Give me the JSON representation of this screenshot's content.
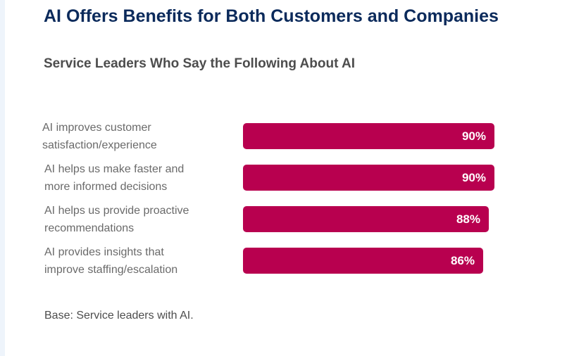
{
  "title": "AI Offers Benefits for Both Customers and Companies",
  "subtitle": "Service Leaders Who Say the Following About AI",
  "footnote": "Base: Service leaders with AI.",
  "colors": {
    "bar": "#b8004f",
    "title": "#0b2a5b",
    "label": "#6a6a6a"
  },
  "chart_data": {
    "type": "bar",
    "orientation": "horizontal",
    "categories": [
      [
        "AI improves customer",
        "satisfaction/experience"
      ],
      [
        "AI helps us make faster and",
        "more informed decisions"
      ],
      [
        "AI helps us provide proactive",
        "recommendations"
      ],
      [
        "AI provides insights that",
        "improve staffing/escalation"
      ]
    ],
    "values": [
      90,
      90,
      88,
      86
    ],
    "value_labels": [
      "90%",
      "90%",
      "88%",
      "86%"
    ],
    "unit": "%",
    "xlim": [
      0,
      100
    ],
    "grid": false,
    "legend": "none"
  }
}
